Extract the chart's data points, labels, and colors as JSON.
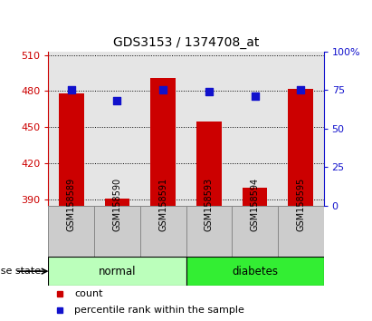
{
  "title": "GDS3153 / 1374708_at",
  "samples": [
    "GSM158589",
    "GSM158590",
    "GSM158591",
    "GSM158593",
    "GSM158594",
    "GSM158595"
  ],
  "counts": [
    478,
    391,
    491,
    455,
    400,
    482
  ],
  "percentiles": [
    75,
    68,
    75,
    74,
    71,
    75
  ],
  "ylim_left": [
    385,
    513
  ],
  "ylim_right": [
    0,
    100
  ],
  "yticks_left": [
    390,
    420,
    450,
    480,
    510
  ],
  "yticks_right": [
    0,
    25,
    50,
    75,
    100
  ],
  "bar_color": "#cc0000",
  "dot_color": "#1111cc",
  "groups": [
    {
      "label": "normal",
      "indices": [
        0,
        1,
        2
      ],
      "color": "#bbffbb"
    },
    {
      "label": "diabetes",
      "indices": [
        3,
        4,
        5
      ],
      "color": "#33ee33"
    }
  ],
  "group_label": "disease state",
  "legend_items": [
    {
      "label": "count",
      "color": "#cc0000"
    },
    {
      "label": "percentile rank within the sample",
      "color": "#1111cc"
    }
  ],
  "bar_width": 0.55,
  "dot_size": 28,
  "base_value": 385,
  "tick_color_left": "#cc0000",
  "tick_color_right": "#1111cc",
  "col_bg": "#cccccc"
}
